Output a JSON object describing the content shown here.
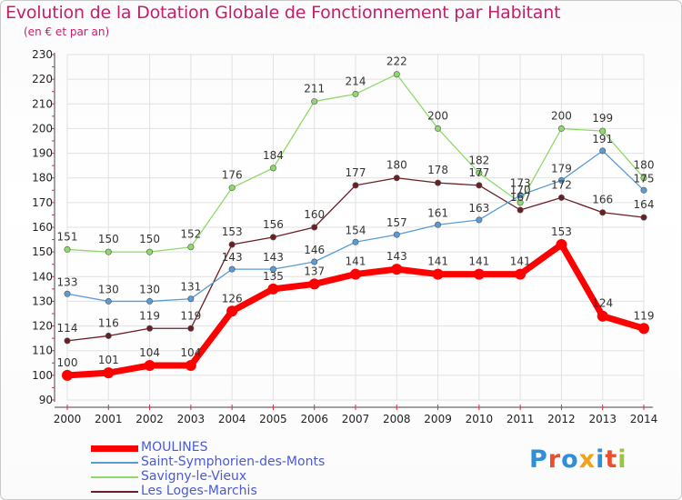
{
  "title": "Evolution de la Dotation Globale de Fonctionnement par Habitant",
  "subtitle": "(en € et par an)",
  "logo": "Proxiti",
  "chart_data": {
    "type": "line",
    "title": "Evolution de la Dotation Globale de Fonctionnement par Habitant",
    "subtitle": "(en € et par an)",
    "x": [
      2000,
      2001,
      2002,
      2003,
      2004,
      2005,
      2006,
      2007,
      2008,
      2009,
      2010,
      2011,
      2012,
      2013,
      2014
    ],
    "ylim": [
      90,
      230
    ],
    "yticks": [
      90,
      100,
      110,
      120,
      130,
      140,
      150,
      160,
      170,
      180,
      190,
      200,
      210,
      220,
      230
    ],
    "grid": true,
    "legend_position": "bottom-left",
    "series": [
      {
        "name": "MOULINES",
        "color": "#ff0000",
        "values": [
          100,
          101,
          104,
          104,
          126,
          135,
          137,
          141,
          143,
          141,
          141,
          141,
          153,
          124,
          119
        ]
      },
      {
        "name": "Saint-Symphorien-des-Monts",
        "color": "#5b9bd5",
        "values": [
          133,
          130,
          130,
          131,
          143,
          143,
          146,
          154,
          157,
          161,
          163,
          173,
          179,
          191,
          175
        ]
      },
      {
        "name": "Savigny-le-Vieux",
        "color": "#8fd96a",
        "values": [
          151,
          150,
          150,
          152,
          176,
          184,
          211,
          214,
          222,
          200,
          182,
          170,
          200,
          199,
          180
        ]
      },
      {
        "name": "Les Loges-Marchis",
        "color": "#6b1f24",
        "values": [
          114,
          116,
          119,
          119,
          153,
          156,
          160,
          177,
          180,
          178,
          177,
          167,
          172,
          166,
          164
        ]
      }
    ]
  }
}
